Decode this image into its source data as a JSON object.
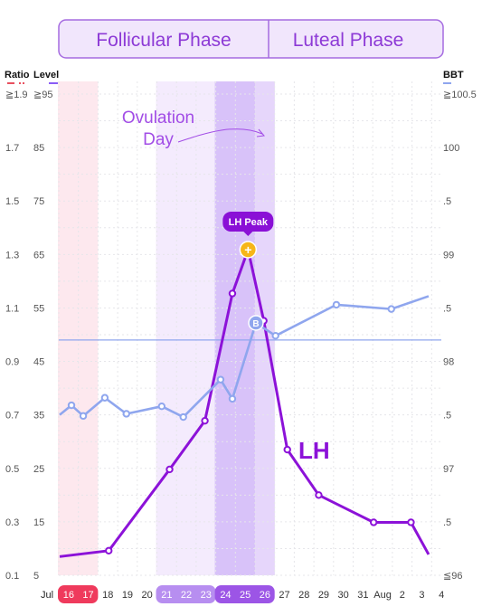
{
  "phases": {
    "follicular": "Follicular Phase",
    "luteal": "Luteal Phase"
  },
  "axis_headers": {
    "ratio": "Ratio",
    "level": "Level",
    "bbt": "BBT"
  },
  "annotations": {
    "ovulation_line1": "Ovulation",
    "ovulation_line2": "Day",
    "lh_peak": "LH Peak",
    "lh_series_label": "LH",
    "bbt_marker": "B",
    "peak_marker": "+"
  },
  "colors": {
    "lh": "#8c12d8",
    "bbt": "#8fa6ee",
    "phase_border": "#a56be0",
    "phase_bg": "#f1e6fc",
    "phase_text": "#8d3ad6",
    "period_band": "#fde8ee",
    "period_day_bg": "#ef3a5c",
    "fertile_band": "#f4ebfd",
    "ovulation_band": "#d8c2f9",
    "ovulation_edge_band": "#e6d6fb",
    "fertile_day_bg": "#b78ef0",
    "ovulation_day_bg": "#9c55e6",
    "peak_badge": "#8a10d6",
    "peak_marker": "#f6b618",
    "ratio_swatch": "#e8505f",
    "level_swatch": "#8a5cf6",
    "bbt_swatch": "#8fa6ee"
  },
  "chart_data": {
    "type": "line",
    "x": [
      "16",
      "17",
      "18",
      "19",
      "20",
      "21",
      "22",
      "23",
      "24",
      "25",
      "26",
      "27",
      "28",
      "29",
      "30",
      "31",
      "Aug",
      "2",
      "3",
      "4"
    ],
    "month_labels": {
      "start": "Jul",
      "aug": "Aug"
    },
    "left_ratio_ticks": [
      "≧1.9",
      "1.7",
      "1.5",
      "1.3",
      "1.1",
      "0.9",
      "0.7",
      "0.5",
      "0.3",
      "0.1"
    ],
    "left_level_ticks": [
      "≧95",
      "85",
      "75",
      "65",
      "55",
      "45",
      "35",
      "25",
      "15",
      "5"
    ],
    "right_bbt_ticks": [
      "≧100.5",
      "100",
      ".5",
      "99",
      ".5",
      "98",
      ".5",
      "97",
      ".5",
      "≦96"
    ],
    "y_level_range": [
      5,
      95
    ],
    "y_bbt_range": [
      96,
      100.5
    ],
    "bbt_coverline": 98.2,
    "period_days": [
      "16",
      "17"
    ],
    "fertile_days": [
      "21",
      "22",
      "23",
      "24",
      "25",
      "26"
    ],
    "ovulation_days": [
      "24",
      "25",
      "26"
    ],
    "series": [
      {
        "name": "LH",
        "axis": "level",
        "points": [
          {
            "x": 0,
            "y": 8.5
          },
          {
            "x": 2.5,
            "y": 9.6
          },
          {
            "x": 5.6,
            "y": 24.8
          },
          {
            "x": 7.4,
            "y": 33.9
          },
          {
            "x": 8.8,
            "y": 57.7
          },
          {
            "x": 9.6,
            "y": 65.9,
            "peak": true
          },
          {
            "x": 10.4,
            "y": 52.6
          },
          {
            "x": 11.6,
            "y": 28.5
          },
          {
            "x": 13.2,
            "y": 20.0
          },
          {
            "x": 16.0,
            "y": 14.9
          },
          {
            "x": 17.9,
            "y": 14.9
          },
          {
            "x": 18.8,
            "y": 8.9
          }
        ]
      },
      {
        "name": "BBT",
        "axis": "bbt",
        "points": [
          {
            "x": 0,
            "y": 97.5
          },
          {
            "x": 0.6,
            "y": 97.59
          },
          {
            "x": 1.2,
            "y": 97.49
          },
          {
            "x": 2.3,
            "y": 97.66
          },
          {
            "x": 3.4,
            "y": 97.51
          },
          {
            "x": 5.2,
            "y": 97.58
          },
          {
            "x": 6.3,
            "y": 97.48
          },
          {
            "x": 8.2,
            "y": 97.83
          },
          {
            "x": 8.8,
            "y": 97.65
          },
          {
            "x": 10.0,
            "y": 98.36,
            "marker": "B"
          },
          {
            "x": 11.0,
            "y": 98.24
          },
          {
            "x": 14.1,
            "y": 98.53
          },
          {
            "x": 16.9,
            "y": 98.49
          },
          {
            "x": 18.8,
            "y": 98.61
          }
        ]
      }
    ],
    "grid": true
  }
}
